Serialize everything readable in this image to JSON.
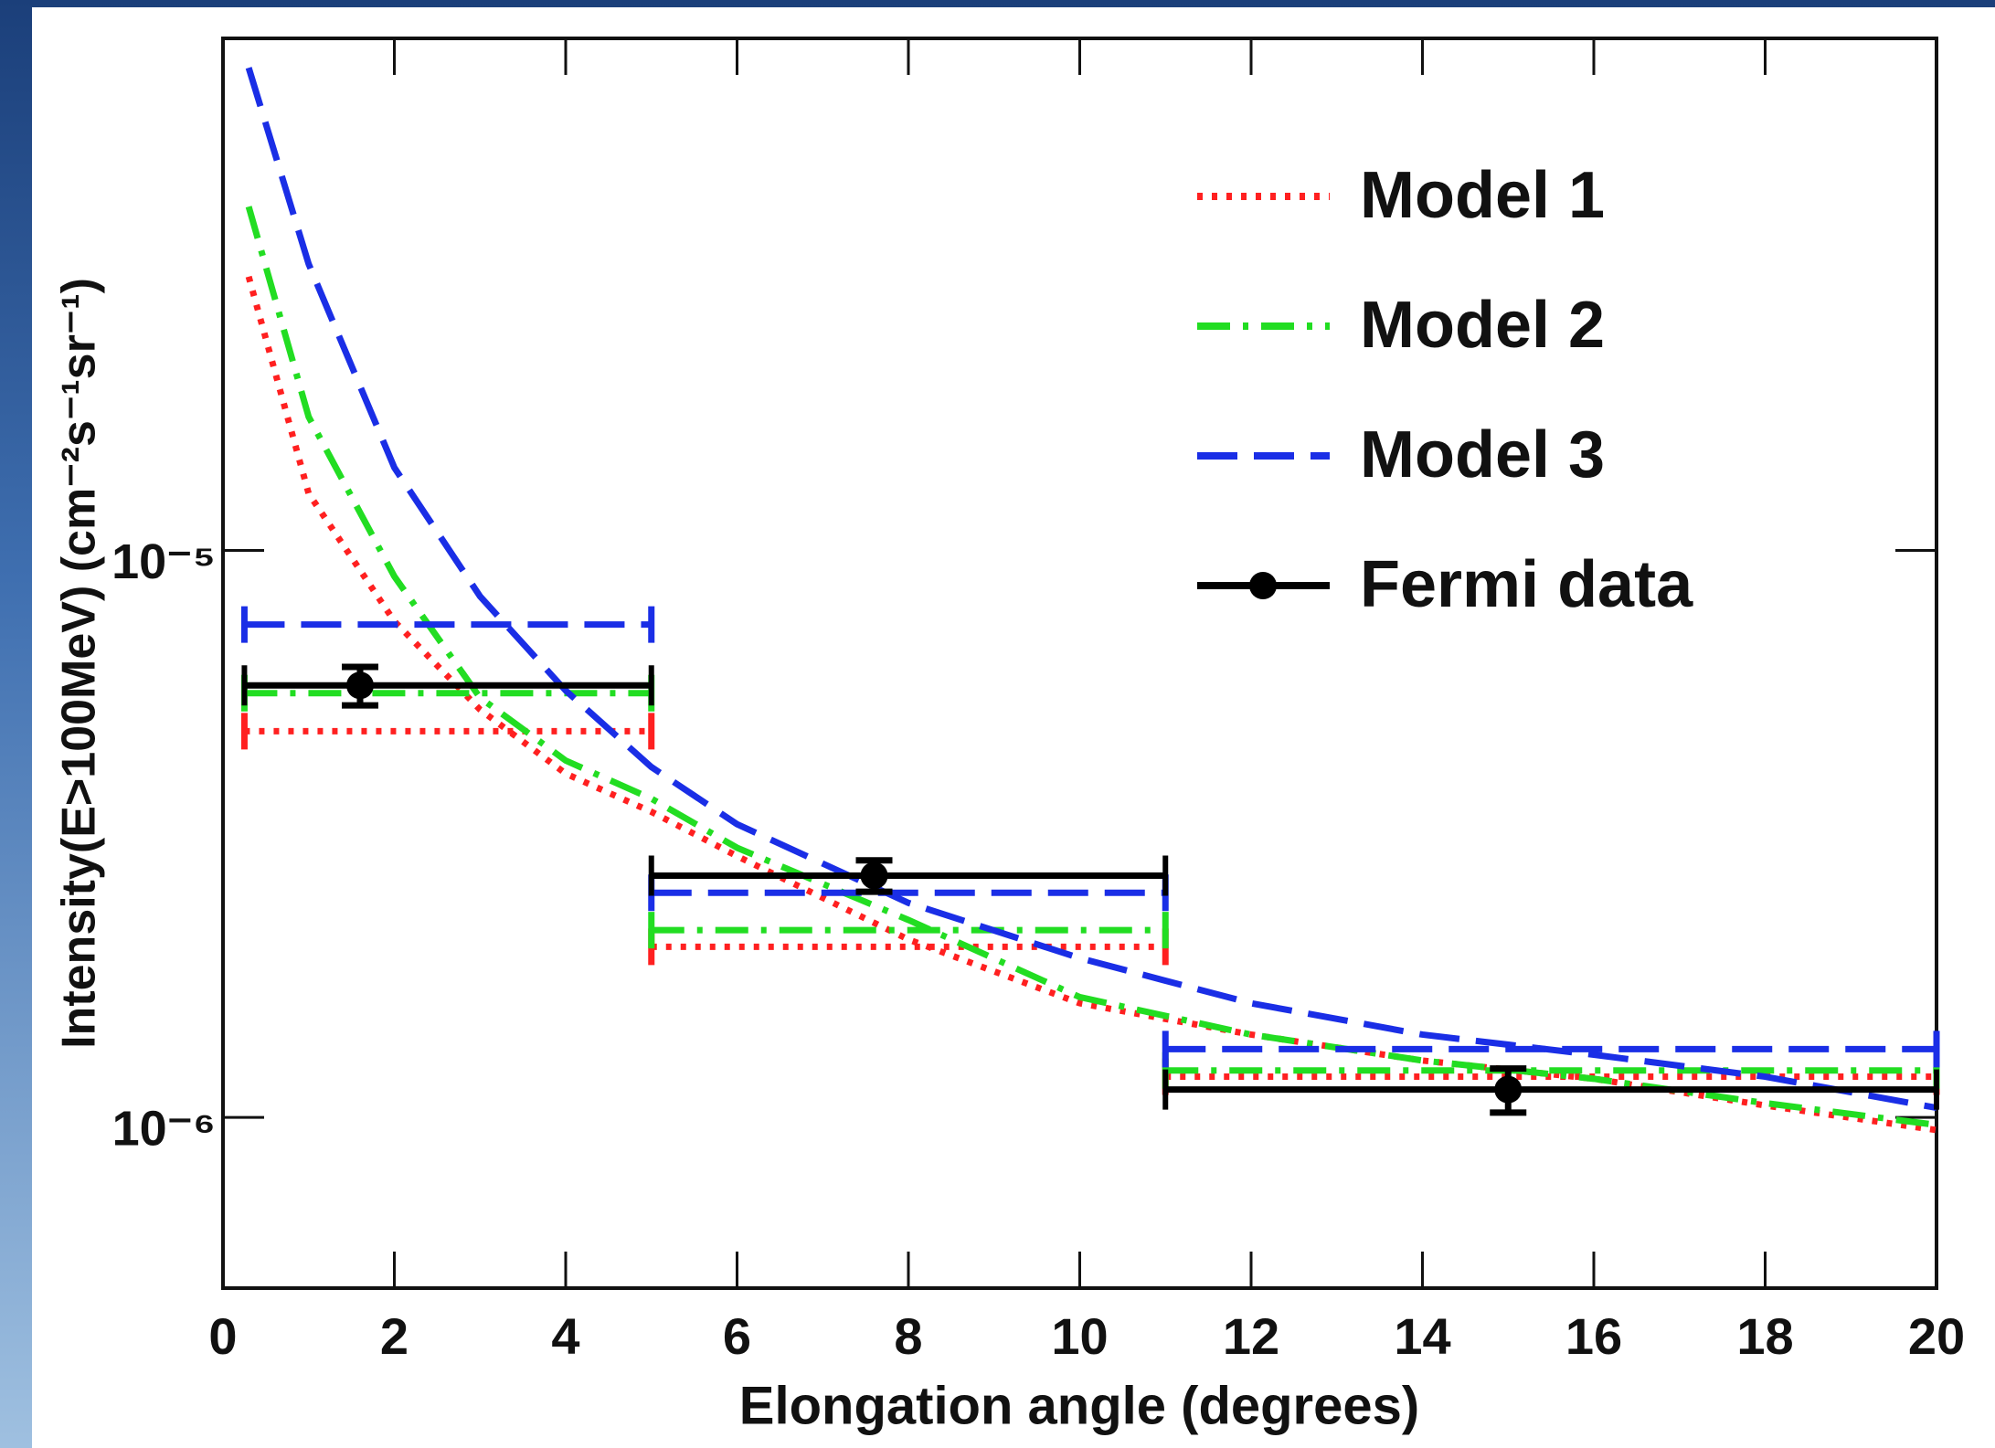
{
  "chart_data": {
    "type": "line",
    "log_y": true,
    "xlabel": "Elongation angle (degrees)",
    "ylabel": "Intensity(E>100MeV) (cm⁻²s⁻¹sr⁻¹)",
    "xlim": [
      0,
      20
    ],
    "xticks": [
      0,
      2,
      4,
      6,
      8,
      10,
      12,
      14,
      16,
      18,
      20
    ],
    "ylim": [
      5e-07,
      8e-05
    ],
    "yticks": [
      {
        "value": 1e-06,
        "label": "10⁻⁶"
      },
      {
        "value": 1e-05,
        "label": "10⁻⁵"
      }
    ],
    "legend": "upper right",
    "bins": [
      0.25,
      5,
      11,
      20
    ],
    "series": [
      {
        "name": "Model 1",
        "color": "#ff2020",
        "dash": "dotted",
        "x": [
          0.3,
          1,
          2,
          3,
          4,
          5,
          6,
          8,
          10,
          12,
          14,
          16,
          18,
          20
        ],
        "values": [
          3.04e-05,
          1.26e-05,
          7.5e-06,
          5.24e-06,
          4.04e-06,
          3.46e-06,
          2.89e-06,
          2.06e-06,
          1.59e-06,
          1.4e-06,
          1.26e-06,
          1.17e-06,
          1.05e-06,
          9.5e-07
        ],
        "bin_values": [
          4.8e-06,
          2e-06,
          1.18e-06
        ]
      },
      {
        "name": "Model 2",
        "color": "#22dd22",
        "dash": "dashdot",
        "x": [
          0.3,
          1,
          2,
          3,
          4,
          5,
          6,
          8,
          10,
          12,
          14,
          16,
          18,
          20
        ],
        "values": [
          4.04e-05,
          1.72e-05,
          9e-06,
          5.5e-06,
          4.26e-06,
          3.65e-06,
          2.99e-06,
          2.23e-06,
          1.63e-06,
          1.4e-06,
          1.26e-06,
          1.17e-06,
          1.06e-06,
          9.7e-07
        ],
        "bin_values": [
          5.6e-06,
          2.14e-06,
          1.21e-06
        ]
      },
      {
        "name": "Model 3",
        "color": "#1a2ee6",
        "dash": "dashed",
        "x": [
          0.3,
          1,
          2,
          3,
          4,
          5,
          6,
          8,
          10,
          12,
          14,
          16,
          18,
          20
        ],
        "values": [
          7.1e-05,
          3.2e-05,
          1.4e-05,
          8.3e-06,
          5.66e-06,
          4.15e-06,
          3.29e-06,
          2.39e-06,
          1.91e-06,
          1.59e-06,
          1.4e-06,
          1.29e-06,
          1.18e-06,
          1.04e-06
        ],
        "bin_values": [
          7.4e-06,
          2.49e-06,
          1.32e-06
        ]
      }
    ],
    "data": {
      "name": "Fermi data",
      "color": "#000000",
      "x": [
        1.6,
        7.6,
        15.0
      ],
      "values": [
        5.78e-06,
        2.67e-06,
        1.12e-06
      ],
      "errors": [
        4.5e-07,
        1.7e-07,
        1e-07
      ]
    }
  }
}
